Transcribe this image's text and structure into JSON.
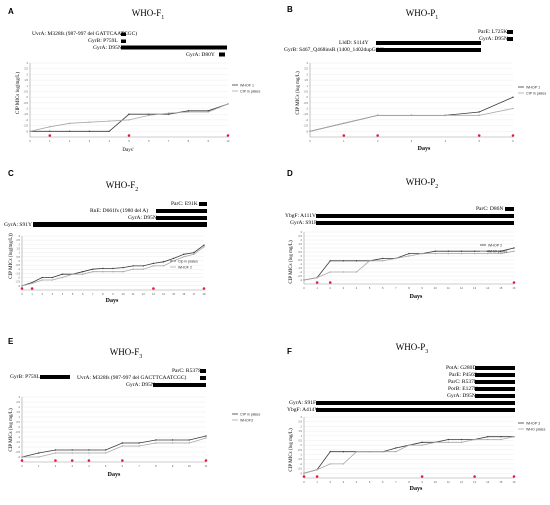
{
  "chart_data": [
    {
      "type": "line",
      "label": "A",
      "title": "WHO-F",
      "title_sub": "1",
      "xlabel": "Days'",
      "ylabel": "CIP MICs log(mg/L)",
      "xlim": [
        0,
        10
      ],
      "ylim": [
        -3.5,
        3
      ],
      "yticks": [
        "-3",
        "-2.5",
        "-2",
        "-1.5",
        "-1",
        "-0.5",
        "0",
        "0.5",
        "1",
        "1.5",
        "2",
        "2.5",
        "3"
      ],
      "mutations": [
        {
          "text": "UvrA: M328fs (987-997 del GATTCAATCGC)",
          "start": 5,
          "end": 5
        },
        {
          "text": "GyrB: P759L",
          "start": 5,
          "end": 5
        },
        {
          "text": "GyrA: D95N",
          "start": 5,
          "end": 10
        },
        {
          "text": "GyrA: D80Y",
          "start": 10,
          "end": 10
        }
      ],
      "series": [
        {
          "name": "WHOF 1",
          "x": [
            0,
            1,
            2,
            3,
            4,
            5,
            6,
            7,
            8,
            9,
            10
          ],
          "y": [
            -3,
            -3,
            -3,
            -3,
            -3,
            -1.5,
            -1.5,
            -1.5,
            -1.2,
            -1.2,
            -0.6
          ]
        },
        {
          "name": "CIP in plates",
          "x": [
            0,
            1,
            2,
            3,
            4,
            5,
            6,
            7,
            8,
            9,
            10
          ],
          "y": [
            -3,
            -2.6,
            -2.3,
            -2.2,
            -2.1,
            -2,
            -1.6,
            -1.4,
            -1.3,
            -1.3,
            -0.6
          ]
        }
      ],
      "markers_x": [
        1,
        5,
        10
      ]
    },
    {
      "type": "line",
      "label": "B",
      "title": "WHO-P",
      "title_sub": "1",
      "xlabel": "Days",
      "ylabel": "CIP MICs (log mg/L)",
      "xlim": [
        0,
        6
      ],
      "ylim": [
        -3.5,
        3
      ],
      "yticks": [
        "-3",
        "-2.5",
        "-2",
        "-1.5",
        "-1",
        "-0.5",
        "0",
        "0.5",
        "1",
        "1.5",
        "2",
        "2.5",
        "3"
      ],
      "mutations": [
        {
          "text": "ParE: L725K",
          "start": 6,
          "end": 6
        },
        {
          "text": "GyrA: D95N",
          "start": 6,
          "end": 6
        },
        {
          "text": "LldD: S114Y",
          "start": 2,
          "end": 5
        },
        {
          "text": "GyrB: S467_Q468insR (1400_1402dupGCC)",
          "start": 2,
          "end": 5
        }
      ],
      "series": [
        {
          "name": "WHOP 1",
          "x": [
            0,
            1,
            2,
            3,
            4,
            5,
            6
          ],
          "y": [
            -3,
            -2.3,
            -1.6,
            -1.6,
            -1.6,
            -1.3,
            0
          ]
        },
        {
          "name": "CIP in plates",
          "x": [
            0,
            1,
            2,
            3,
            4,
            5,
            6
          ],
          "y": [
            -3,
            -2.3,
            -1.6,
            -1.6,
            -1.6,
            -1.6,
            -1
          ]
        }
      ],
      "markers_x": [
        1,
        2,
        5,
        6
      ]
    },
    {
      "type": "line",
      "label": "C",
      "title": "WHO-F",
      "title_sub": "2",
      "xlabel": "Days",
      "ylabel": "CIP MICs (log(mg/L))",
      "xlim": [
        0,
        18
      ],
      "ylim": [
        -3.5,
        3
      ],
      "yticks": [
        "-3",
        "-2.5",
        "-2",
        "-1.5",
        "-1",
        "-0.5",
        "0",
        "0.5",
        "1",
        "1.5",
        "2",
        "2.5",
        "3"
      ],
      "mutations": [
        {
          "text": "ParC: E91K",
          "start": 18,
          "end": 18
        },
        {
          "text": "RnE: D661fs (1980 del A)",
          "start": 13,
          "end": 18
        },
        {
          "text": "GyrA: D95N",
          "start": 13,
          "end": 18
        },
        {
          "text": "GyrA: S91Y",
          "start": 0,
          "end": 18
        }
      ],
      "series": [
        {
          "name": "Cip in plates",
          "x": [
            0,
            1,
            2,
            3,
            4,
            5,
            6,
            7,
            8,
            9,
            10,
            11,
            12,
            13,
            14,
            15,
            16,
            17,
            18
          ],
          "y": [
            -3,
            -2.6,
            -2,
            -2,
            -1.6,
            -1.6,
            -1.3,
            -1,
            -0.9,
            -0.9,
            -0.8,
            -0.6,
            -0.6,
            -0.3,
            -0.1,
            0.3,
            0.8,
            1,
            1.9
          ]
        },
        {
          "name": "WHOF 2",
          "x": [
            0,
            1,
            2,
            3,
            4,
            5,
            6,
            7,
            8,
            9,
            10,
            11,
            12,
            13,
            14,
            15,
            16,
            17,
            18
          ],
          "y": [
            -3,
            -2.7,
            -2.3,
            -2.3,
            -2,
            -1.6,
            -1.6,
            -1.3,
            -1.3,
            -1.3,
            -1.3,
            -1,
            -1,
            -0.6,
            -0.6,
            0,
            0.5,
            0.8,
            1.7
          ]
        }
      ],
      "markers_x": [
        0,
        1,
        13,
        18
      ]
    },
    {
      "type": "line",
      "label": "D",
      "title": "WHO-P",
      "title_sub": "2",
      "xlabel": "Days",
      "ylabel": "CIP MICs (log mg/L)",
      "xlim": [
        0,
        16
      ],
      "ylim": [
        -3.5,
        3
      ],
      "yticks": [
        "-3",
        "-2.5",
        "-2",
        "-1.5",
        "-1",
        "-0.5",
        "0",
        "0.5",
        "1",
        "1.5",
        "2",
        "2.5",
        "3"
      ],
      "mutations": [
        {
          "text": "ParC: D86N",
          "start": 16,
          "end": 16
        },
        {
          "text": "YbgF: A111V",
          "start": 0,
          "end": 16
        },
        {
          "text": "GyrA: S91F",
          "start": 0,
          "end": 16
        }
      ],
      "series": [
        {
          "name": "WHOP 2",
          "x": [
            0,
            1,
            2,
            3,
            4,
            5,
            6,
            7,
            8,
            9,
            10,
            11,
            12,
            13,
            14,
            15,
            16
          ],
          "y": [
            -3,
            -2.7,
            -0.6,
            -0.6,
            -0.6,
            -0.6,
            -0.3,
            -0.3,
            0.3,
            0.3,
            0.6,
            0.6,
            0.6,
            0.6,
            0.6,
            0.6,
            1
          ]
        },
        {
          "name": "WHO plates",
          "x": [
            0,
            1,
            2,
            3,
            4,
            5,
            6,
            7,
            8,
            9,
            10,
            11,
            12,
            13,
            14,
            15,
            16
          ],
          "y": [
            -3,
            -2.7,
            -2,
            -2,
            -2,
            -0.6,
            -0.6,
            -0.3,
            0,
            0.3,
            0.3,
            0.3,
            0.3,
            0.3,
            0.3,
            0.3,
            0.6
          ]
        }
      ],
      "markers_x": [
        1,
        2,
        16
      ]
    },
    {
      "type": "line",
      "label": "E",
      "title": "WHO-F",
      "title_sub": "3",
      "xlabel": "Days",
      "ylabel": "CIP MICs (log mg/L)",
      "xlim": [
        0,
        11
      ],
      "ylim": [
        -3.5,
        3
      ],
      "yticks": [
        "-3",
        "-2.5",
        "-2",
        "-1.5",
        "-1",
        "-0.5",
        "0",
        "0.5",
        "1",
        "1.5",
        "2",
        "2.5",
        "3"
      ],
      "mutations": [
        {
          "text": "ParC: R537S",
          "start": 11,
          "end": 11
        },
        {
          "text": "UvrA: M328fs (987-997 del GACTTCAATCGC)",
          "start": 11,
          "end": 11
        },
        {
          "text": "GyrB: P759L",
          "start": 0,
          "end": 2
        },
        {
          "text": "GyrA: D95N",
          "start": 6,
          "end": 11
        }
      ],
      "series": [
        {
          "name": "CIP in plates",
          "x": [
            0,
            1,
            2,
            3,
            4,
            5,
            6,
            7,
            8,
            9,
            10,
            11
          ],
          "y": [
            -3,
            -2.6,
            -2.3,
            -2.3,
            -2.3,
            -2.3,
            -1.6,
            -1.6,
            -1.3,
            -1.3,
            -1.3,
            -0.9
          ]
        },
        {
          "name": "WHOF3",
          "x": [
            0,
            1,
            2,
            3,
            4,
            5,
            6,
            7,
            8,
            9,
            10,
            11
          ],
          "y": [
            -3,
            -3,
            -2.6,
            -2.6,
            -2.6,
            -2.6,
            -1.9,
            -1.9,
            -1.6,
            -1.6,
            -1.6,
            -1.1
          ]
        }
      ],
      "markers_x": [
        0,
        2,
        3,
        4,
        6,
        11
      ]
    },
    {
      "type": "line",
      "label": "F",
      "title": "WHO-P",
      "title_sub": "3",
      "xlabel": "Days",
      "ylabel": "CIP MICs (log mg/L)",
      "xlim": [
        0,
        16
      ],
      "ylim": [
        -3.5,
        3
      ],
      "yticks": [
        "-3",
        "-2.5",
        "-2",
        "-1.5",
        "-1",
        "-0.5",
        "0",
        "0.5",
        "1",
        "1.5",
        "2",
        "2.5",
        "3"
      ],
      "mutations": [
        {
          "text": "PotA: G280D",
          "start": 13,
          "end": 16
        },
        {
          "text": "ParE: P456S",
          "start": 13,
          "end": 16
        },
        {
          "text": "ParC: R537L",
          "start": 13,
          "end": 16
        },
        {
          "text": "PorB: E127K",
          "start": 13,
          "end": 16
        },
        {
          "text": "GyrA: D95N",
          "start": 13,
          "end": 16
        },
        {
          "text": "GyrA: S91F",
          "start": 0,
          "end": 16
        },
        {
          "text": "YbgF: A414V",
          "start": 0,
          "end": 16
        }
      ],
      "series": [
        {
          "name": "WHOP 3",
          "x": [
            0,
            1,
            2,
            3,
            4,
            5,
            6,
            7,
            8,
            9,
            10,
            11,
            12,
            13,
            14,
            15,
            16
          ],
          "y": [
            -3,
            -2.6,
            -0.7,
            -0.7,
            -0.7,
            -0.7,
            -0.7,
            -0.3,
            0,
            0.3,
            0.3,
            0.6,
            0.6,
            0.6,
            0.9,
            0.9,
            0.9
          ]
        },
        {
          "name": "WHO plates",
          "x": [
            0,
            1,
            2,
            3,
            4,
            5,
            6,
            7,
            8,
            9,
            10,
            11,
            12,
            13,
            14,
            15,
            16
          ],
          "y": [
            -3,
            -2.6,
            -2,
            -2,
            -0.7,
            -0.7,
            -0.7,
            -0.7,
            0,
            0,
            0.3,
            0.3,
            0.3,
            0.6,
            0.6,
            0.6,
            0.9
          ]
        }
      ],
      "markers_x": [
        0,
        1,
        9,
        13,
        16
      ]
    }
  ],
  "marker_color": "#e4183c",
  "series_colors": [
    "#3a3a3a",
    "#a8a8a8"
  ]
}
